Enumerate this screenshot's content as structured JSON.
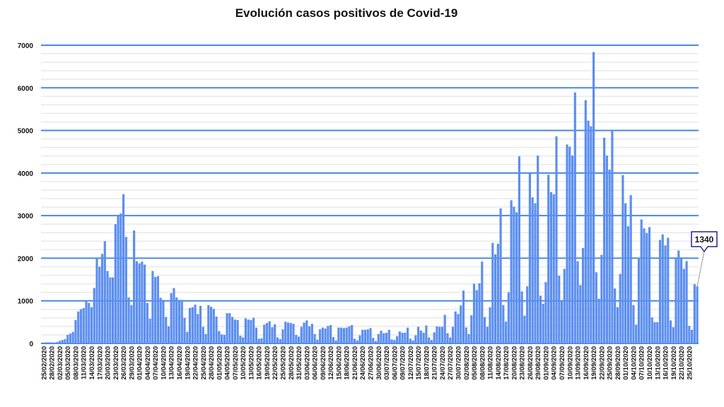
{
  "chart_data": {
    "type": "bar",
    "title": "Evolución casos positivos de Covid-19",
    "xlabel": "",
    "ylabel": "",
    "ylim": [
      0,
      7000
    ],
    "yticks": [
      0,
      1000,
      2000,
      3000,
      4000,
      5000,
      6000,
      7000
    ],
    "grid": true,
    "legend": "none",
    "bar_color": "#5b8ef0",
    "grid_color": "#4a86e8",
    "x_interval": "daily",
    "tick_every": 3,
    "tick_labels": [
      "25/02/2020",
      "28/02/2020",
      "02/03/2020",
      "05/03/2020",
      "08/03/2020",
      "11/03/2020",
      "14/03/2020",
      "17/03/2020",
      "20/03/2020",
      "23/03/2020",
      "26/03/2020",
      "29/03/2020",
      "01/04/2020",
      "04/04/2020",
      "07/04/2020",
      "10/04/2020",
      "13/04/2020",
      "16/04/2020",
      "19/04/2020",
      "22/04/2020",
      "25/04/2020",
      "28/04/2020",
      "01/05/2020",
      "04/05/2020",
      "07/05/2020",
      "10/05/2020",
      "13/05/2020",
      "16/05/2020",
      "19/05/2020",
      "22/05/2020",
      "25/05/2020",
      "28/05/2020",
      "31/05/2020",
      "03/06/2020",
      "06/06/2020",
      "09/06/2020",
      "12/06/2020",
      "15/06/2020",
      "18/06/2020",
      "21/06/2020",
      "24/06/2020",
      "27/06/2020",
      "30/06/2020",
      "03/07/2020",
      "06/07/2020",
      "09/07/2020",
      "12/07/2020",
      "15/07/2020",
      "18/07/2020",
      "21/07/2020",
      "24/07/2020",
      "27/07/2020",
      "30/07/2020",
      "02/08/2020",
      "05/08/2020",
      "08/08/2020",
      "11/08/2020",
      "14/08/2020",
      "17/08/2020",
      "20/08/2020",
      "23/08/2020",
      "26/08/2020",
      "29/08/2020",
      "01/09/2020",
      "04/09/2020",
      "07/09/2020",
      "10/09/2020",
      "13/09/2020",
      "16/09/2020",
      "19/09/2020",
      "22/09/2020",
      "25/09/2020",
      "28/09/2020",
      "01/10/2020",
      "04/10/2020",
      "07/10/2020",
      "10/10/2020",
      "13/10/2020",
      "16/10/2020",
      "19/10/2020",
      "22/10/2020",
      "25/10/2020"
    ],
    "values": [
      20,
      25,
      25,
      25,
      20,
      30,
      60,
      80,
      100,
      200,
      230,
      270,
      550,
      750,
      800,
      830,
      1000,
      950,
      850,
      1300,
      2000,
      1800,
      2100,
      2400,
      1700,
      1550,
      1550,
      2800,
      3000,
      3050,
      3500,
      2500,
      1080,
      900,
      2650,
      1930,
      1880,
      1920,
      1850,
      950,
      580,
      1700,
      1560,
      1580,
      1070,
      1020,
      620,
      400,
      1180,
      1300,
      1080,
      1020,
      1020,
      600,
      270,
      830,
      850,
      910,
      690,
      880,
      390,
      220,
      900,
      860,
      810,
      630,
      290,
      210,
      200,
      710,
      710,
      620,
      560,
      550,
      180,
      140,
      590,
      560,
      550,
      600,
      370,
      110,
      120,
      440,
      480,
      520,
      380,
      450,
      140,
      100,
      330,
      510,
      490,
      480,
      460,
      200,
      160,
      390,
      490,
      540,
      400,
      460,
      220,
      90,
      330,
      370,
      350,
      410,
      430,
      150,
      70,
      370,
      370,
      360,
      370,
      400,
      430,
      110,
      70,
      190,
      320,
      320,
      330,
      360,
      130,
      55,
      220,
      300,
      240,
      250,
      320,
      95,
      80,
      170,
      280,
      250,
      250,
      370,
      110,
      70,
      190,
      390,
      300,
      250,
      420,
      140,
      80,
      260,
      400,
      390,
      390,
      670,
      240,
      140,
      390,
      750,
      690,
      890,
      1240,
      375,
      220,
      660,
      1400,
      1250,
      1410,
      1920,
      620,
      390,
      850,
      2360,
      2090,
      2340,
      3170,
      900,
      510,
      1200,
      3360,
      3210,
      3080,
      4390,
      1220,
      650,
      1340,
      3990,
      3430,
      3290,
      4410,
      1120,
      930,
      1440,
      3960,
      3550,
      3500,
      4860,
      1590,
      1010,
      1750,
      4670,
      4620,
      4410,
      5890,
      1930,
      1370,
      2240,
      5710,
      5230,
      5100,
      6840,
      1670,
      1050,
      2080,
      4830,
      4410,
      4080,
      5010,
      1290,
      850,
      1630,
      3950,
      3290,
      2750,
      3480,
      900,
      440,
      2010,
      2910,
      2700,
      2590,
      2730,
      610,
      500,
      500,
      2430,
      2560,
      2300,
      2480,
      540,
      380,
      2020,
      2180,
      2020,
      1750,
      1930,
      410,
      320,
      1390,
      1340
    ],
    "annotations": [
      {
        "label": "1340",
        "target": "last"
      }
    ]
  }
}
